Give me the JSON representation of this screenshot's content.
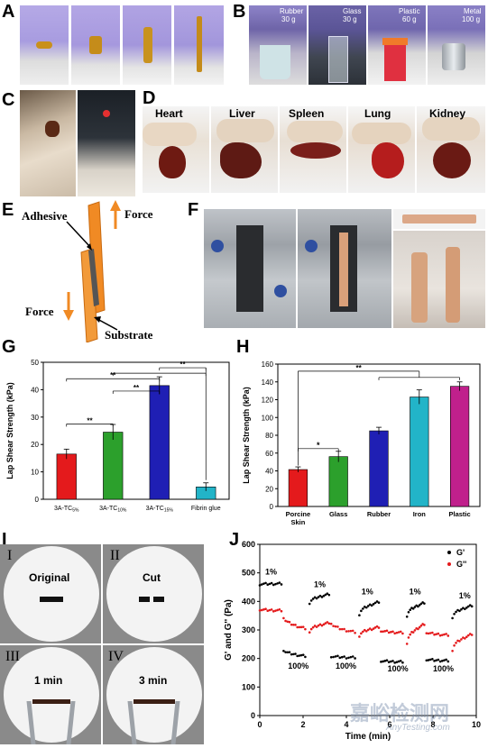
{
  "panels": {
    "a": "A",
    "b": "B",
    "c": "C",
    "d": "D",
    "e": "E",
    "f": "F",
    "g": "G",
    "h": "H",
    "i": "I",
    "j": "J"
  },
  "panel_b_labels": [
    {
      "material": "Rubber",
      "weight": "30 g"
    },
    {
      "material": "Glass",
      "weight": "30 g"
    },
    {
      "material": "Plastic",
      "weight": "60 g"
    },
    {
      "material": "Metal",
      "weight": "100 g"
    }
  ],
  "panel_d_labels": [
    "Heart",
    "Liver",
    "Spleen",
    "Lung",
    "Kidney"
  ],
  "panel_e_labels": {
    "adhesive": "Adhesive",
    "force_top": "Force",
    "force_bottom": "Force",
    "substrate": "Substrate"
  },
  "panel_i_labels": {
    "roman": [
      "I",
      "II",
      "III",
      "IV"
    ],
    "captions": [
      "Original",
      "Cut",
      "1 min",
      "3 min"
    ]
  },
  "colors": {
    "orange": "#f08a24",
    "red": "#e41a1c",
    "green": "#2ca02c",
    "blue": "#1f1fb4",
    "cyan": "#22b4c8",
    "magenta": "#c0208c",
    "purple_glove": "#8a7fc8"
  },
  "watermark": {
    "cn": "嘉峪检测网",
    "en": "AnyTesting.com"
  },
  "chart_data": [
    {
      "type": "bar",
      "panel": "G",
      "categories": [
        "3A-TC5%",
        "3A-TC10%",
        "3A-TC15%",
        "Fibrin glue"
      ],
      "category_main": [
        "3A-TC",
        "3A-TC",
        "3A-TC",
        "Fibrin glue"
      ],
      "category_sub": [
        "5%",
        "10%",
        "15%",
        ""
      ],
      "values": [
        16.5,
        24.5,
        41.5,
        4.5
      ],
      "errors": [
        1.8,
        2.8,
        3.2,
        1.5
      ],
      "colors": [
        "#e41a1c",
        "#2ca02c",
        "#1f1fb4",
        "#22b4c8"
      ],
      "ylabel": "Lap Shear Strength (kPa)",
      "ylim": [
        0,
        50
      ],
      "yticks": [
        0,
        10,
        20,
        30,
        40,
        50
      ],
      "significance": [
        {
          "from": 0,
          "to": 1,
          "label": "**"
        },
        {
          "from": 0,
          "to": 2,
          "label": "**"
        },
        {
          "from": 1,
          "to": 2,
          "label": "**"
        },
        {
          "from": 1,
          "to": 3,
          "label": "**"
        },
        {
          "from": 2,
          "to": 3,
          "label": "**"
        }
      ]
    },
    {
      "type": "bar",
      "panel": "H",
      "categories": [
        "Porcine Skin",
        "Glass",
        "Rubber",
        "Iron",
        "Plastic"
      ],
      "category_lines": [
        [
          "Porcine",
          "Skin"
        ],
        [
          "Glass"
        ],
        [
          "Rubber"
        ],
        [
          "Iron"
        ],
        [
          "Plastic"
        ]
      ],
      "values": [
        41.5,
        56,
        85,
        123,
        135
      ],
      "errors": [
        3,
        6,
        4,
        8,
        5
      ],
      "colors": [
        "#e41a1c",
        "#2ca02c",
        "#1f1fb4",
        "#22b4c8",
        "#c0208c"
      ],
      "ylabel": "Lap Shear Strength (kPa)",
      "ylim": [
        0,
        160
      ],
      "yticks": [
        0,
        20,
        40,
        60,
        80,
        100,
        120,
        140,
        160
      ],
      "significance": [
        {
          "from": 0,
          "to": 1,
          "label": "*"
        },
        {
          "from": 0,
          "to": "group",
          "label": "**"
        }
      ]
    },
    {
      "type": "scatter",
      "panel": "J",
      "xlabel": "Time (min)",
      "ylabel": "G' and G'' (Pa)",
      "xlim": [
        0,
        10
      ],
      "ylim": [
        0,
        600
      ],
      "xticks": [
        0,
        2,
        4,
        6,
        8,
        10
      ],
      "yticks": [
        0,
        100,
        200,
        300,
        400,
        500,
        600
      ],
      "legend": "top-right",
      "series": [
        {
          "name": "G'",
          "color": "#000000",
          "segments": [
            {
              "x0": 0.0,
              "x1": 1.0,
              "y0": 460,
              "y1": 462
            },
            {
              "x0": 1.1,
              "x1": 2.1,
              "y0": 230,
              "y1": 208
            },
            {
              "x0": 2.3,
              "x1": 3.2,
              "y0": 395,
              "y1": 425
            },
            {
              "x0": 3.3,
              "x1": 4.4,
              "y0": 208,
              "y1": 203
            },
            {
              "x0": 4.6,
              "x1": 5.5,
              "y0": 355,
              "y1": 398
            },
            {
              "x0": 5.6,
              "x1": 6.6,
              "y0": 192,
              "y1": 188
            },
            {
              "x0": 6.8,
              "x1": 7.6,
              "y0": 350,
              "y1": 395
            },
            {
              "x0": 7.7,
              "x1": 8.7,
              "y0": 197,
              "y1": 192
            },
            {
              "x0": 8.9,
              "x1": 9.8,
              "y0": 345,
              "y1": 385
            }
          ]
        },
        {
          "name": "G''",
          "color": "#e41a1c",
          "segments": [
            {
              "x0": 0.0,
              "x1": 1.0,
              "y0": 372,
              "y1": 368
            },
            {
              "x0": 1.1,
              "x1": 2.1,
              "y0": 345,
              "y1": 305
            },
            {
              "x0": 2.3,
              "x1": 3.2,
              "y0": 295,
              "y1": 325
            },
            {
              "x0": 3.3,
              "x1": 4.4,
              "y0": 325,
              "y1": 292
            },
            {
              "x0": 4.6,
              "x1": 5.5,
              "y0": 280,
              "y1": 310
            },
            {
              "x0": 5.6,
              "x1": 6.6,
              "y0": 298,
              "y1": 290
            },
            {
              "x0": 6.8,
              "x1": 7.6,
              "y0": 255,
              "y1": 320
            },
            {
              "x0": 7.7,
              "x1": 8.7,
              "y0": 292,
              "y1": 282
            },
            {
              "x0": 8.9,
              "x1": 9.8,
              "y0": 230,
              "y1": 285
            }
          ]
        }
      ],
      "annotations": [
        {
          "text": "1%",
          "x": 0.25,
          "y": 495
        },
        {
          "text": "100%",
          "x": 1.3,
          "y": 165
        },
        {
          "text": "1%",
          "x": 2.5,
          "y": 450
        },
        {
          "text": "100%",
          "x": 3.5,
          "y": 165
        },
        {
          "text": "1%",
          "x": 4.7,
          "y": 425
        },
        {
          "text": "100%",
          "x": 5.9,
          "y": 155
        },
        {
          "text": "1%",
          "x": 6.9,
          "y": 425
        },
        {
          "text": "100%",
          "x": 8.0,
          "y": 155
        },
        {
          "text": "1%",
          "x": 9.2,
          "y": 410
        }
      ]
    }
  ]
}
